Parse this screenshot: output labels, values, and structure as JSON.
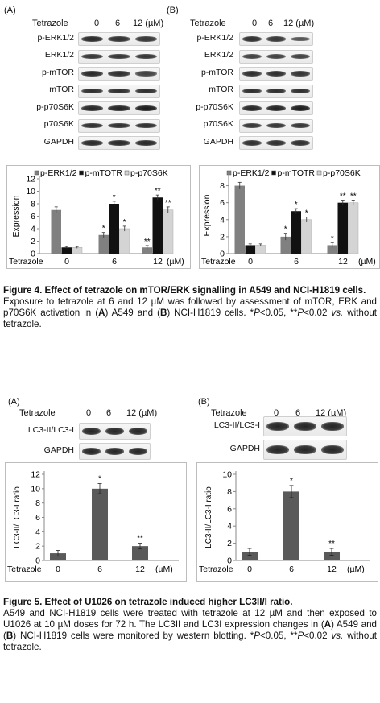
{
  "fig4": {
    "panels": [
      {
        "letter": "(A)",
        "treatment_label": "Tetrazole",
        "doses": [
          "0",
          "6",
          "12 (µM)"
        ],
        "blot_rows": [
          "p-ERK1/2",
          "ERK1/2",
          "p-mTOR",
          "mTOR",
          "p-p70S6K",
          "p70S6K",
          "GAPDH"
        ],
        "blot_intensity": [
          [
            0.9,
            0.85,
            0.8
          ],
          [
            0.8,
            0.8,
            0.8
          ],
          [
            0.9,
            0.85,
            0.7
          ],
          [
            0.85,
            0.85,
            0.85
          ],
          [
            0.9,
            0.95,
            1.0
          ],
          [
            0.85,
            0.85,
            0.85
          ],
          [
            0.9,
            0.9,
            0.9
          ]
        ],
        "chart": {
          "legend": [
            "p-ERK1/2",
            "p-mTOTR",
            "p-p70S6K"
          ],
          "ylabel": "Expression",
          "yticks": [
            "0",
            "2",
            "4",
            "6",
            "8",
            "10",
            "12"
          ],
          "ylim": [
            0,
            12
          ],
          "xlabel_prefix": "Tetrazole",
          "categories": [
            "0",
            "6",
            "12"
          ],
          "unit": "(µM)",
          "series": [
            {
              "name": "p-ERK1/2",
              "values": [
                7.0,
                3.0,
                1.0
              ],
              "errors": [
                0.5,
                0.4,
                0.3
              ],
              "marks": [
                "",
                "*",
                "**"
              ],
              "color": "#808080"
            },
            {
              "name": "p-mTOTR",
              "values": [
                1.0,
                8.0,
                9.0
              ],
              "errors": [
                0.15,
                0.4,
                0.4
              ],
              "marks": [
                "",
                "*",
                "**"
              ],
              "color": "#111111"
            },
            {
              "name": "p-p70S6K",
              "values": [
                1.0,
                4.0,
                7.0
              ],
              "errors": [
                0.15,
                0.4,
                0.5
              ],
              "marks": [
                "",
                "*",
                "**"
              ],
              "color": "#d4d4d4"
            }
          ]
        }
      },
      {
        "letter": "(B)",
        "treatment_label": "Tetrazole",
        "doses": [
          "0",
          "6",
          "12 (µM)"
        ],
        "blot_rows": [
          "p-ERK1/2",
          "ERK1/2",
          "p-mTOR",
          "mTOR",
          "p-p70S6K",
          "p70S6K",
          "GAPDH"
        ],
        "blot_intensity": [
          [
            0.85,
            0.8,
            0.55
          ],
          [
            0.7,
            0.7,
            0.7
          ],
          [
            0.85,
            0.85,
            0.8
          ],
          [
            0.85,
            0.85,
            0.85
          ],
          [
            0.9,
            0.95,
            1.0
          ],
          [
            0.8,
            0.8,
            0.8
          ],
          [
            0.85,
            0.85,
            0.85
          ]
        ],
        "chart": {
          "legend": [
            "p-ERK1/2",
            "p-mTOTR",
            "p-p70S6K"
          ],
          "ylabel": "Expression",
          "yticks": [
            "0",
            "2",
            "4",
            "6",
            "8"
          ],
          "ylim": [
            0,
            9
          ],
          "xlabel_prefix": "Tetrazole",
          "categories": [
            "0",
            "6",
            "12"
          ],
          "unit": "(µM)",
          "series": [
            {
              "name": "p-ERK1/2",
              "values": [
                8.0,
                2.0,
                1.0
              ],
              "errors": [
                0.4,
                0.4,
                0.3
              ],
              "marks": [
                "",
                "*",
                "*"
              ],
              "color": "#808080"
            },
            {
              "name": "p-mTOTR",
              "values": [
                1.0,
                5.0,
                6.0
              ],
              "errors": [
                0.15,
                0.3,
                0.3
              ],
              "marks": [
                "",
                "*",
                "**"
              ],
              "color": "#111111"
            },
            {
              "name": "p-p70S6K",
              "values": [
                1.0,
                4.0,
                6.0
              ],
              "errors": [
                0.15,
                0.3,
                0.3
              ],
              "marks": [
                "",
                "*",
                "**"
              ],
              "color": "#d4d4d4"
            }
          ]
        }
      }
    ],
    "caption": {
      "title": "Figure 4. Effect of tetrazole on mTOR/ERK signalling in A549 and NCI-H1819 cells.",
      "body_html": "Exposure to tetrazole at 6 and 12 µM was followed by assessment of mTOR, ERK and p70S6K activation in (<b>A</b>) A549 and (<b>B</b>) NCI-H1819 cells. *<i>P</i>&lt;0.05, **<i>P</i>&lt;0.02 <i>vs.</i> without tetrazole."
    }
  },
  "fig5": {
    "panels": [
      {
        "letter": "(A)",
        "treatment_label": "Tetrazole",
        "doses": [
          "0",
          "6",
          "12 (µM)"
        ],
        "blot_rows": [
          "LC3-II/LC3-I",
          "GAPDH"
        ],
        "chart": {
          "ylabel": "LC3-II/LC3-I ratio",
          "yticks": [
            "0",
            "2",
            "4",
            "6",
            "8",
            "10",
            "12"
          ],
          "ylim": [
            0,
            12
          ],
          "xlabel_prefix": "Tetrazole",
          "categories": [
            "0",
            "6",
            "12"
          ],
          "unit": "(µM)",
          "values": [
            1.0,
            10.0,
            2.0
          ],
          "errors": [
            0.4,
            0.7,
            0.4
          ],
          "marks": [
            "",
            "*",
            "**"
          ],
          "color": "#5a5a5a"
        }
      },
      {
        "letter": "(B)",
        "treatment_label": "Tetrazole",
        "doses": [
          "0",
          "6",
          "12 (µM)"
        ],
        "blot_rows": [
          "LC3-II/LC3-I",
          "GAPDH"
        ],
        "chart": {
          "ylabel": "LC3-II/LC3-I ratio",
          "yticks": [
            "0",
            "2",
            "4",
            "6",
            "8",
            "10"
          ],
          "ylim": [
            0,
            10
          ],
          "xlabel_prefix": "Tetrazole",
          "categories": [
            "0",
            "6",
            "12"
          ],
          "unit": "(µM)",
          "values": [
            1.0,
            8.0,
            1.0
          ],
          "errors": [
            0.4,
            0.7,
            0.4
          ],
          "marks": [
            "",
            "*",
            "**"
          ],
          "color": "#5a5a5a"
        }
      }
    ],
    "caption": {
      "title": "Figure 5. Effect of U1026 on tetrazole induced higher LC3II/I ratio.",
      "body_html": "A549 and NCI-H1819 cells were treated with tetrazole at 12 µM and then exposed to U1026 at 10 µM doses for 72 h. The LC3II and LC3I expression changes in (<b>A</b>) A549 and (<b>B</b>) NCI-H1819 cells were monitored by western blotting. *<i>P</i>&lt;0.05, **<i>P</i>&lt;0.02 <i>vs.</i> without tetrazole."
    }
  },
  "chart_data": [
    {
      "type": "bar",
      "title": "",
      "categories": [
        "0",
        "6",
        "12"
      ],
      "xlabel": "Tetrazole (µM)",
      "ylabel": "Expression",
      "ylim": [
        0,
        12
      ],
      "legend": "top",
      "series": [
        {
          "name": "p-ERK1/2",
          "values": [
            7.0,
            3.0,
            1.0
          ]
        },
        {
          "name": "p-mTOTR",
          "values": [
            1.0,
            8.0,
            9.0
          ]
        },
        {
          "name": "p-p70S6K",
          "values": [
            1.0,
            4.0,
            7.0
          ]
        }
      ]
    },
    {
      "type": "bar",
      "title": "",
      "categories": [
        "0",
        "6",
        "12"
      ],
      "xlabel": "Tetrazole (µM)",
      "ylabel": "Expression",
      "ylim": [
        0,
        9
      ],
      "legend": "top",
      "series": [
        {
          "name": "p-ERK1/2",
          "values": [
            8.0,
            2.0,
            1.0
          ]
        },
        {
          "name": "p-mTOTR",
          "values": [
            1.0,
            5.0,
            6.0
          ]
        },
        {
          "name": "p-p70S6K",
          "values": [
            1.0,
            4.0,
            6.0
          ]
        }
      ]
    },
    {
      "type": "bar",
      "title": "",
      "categories": [
        "0",
        "6",
        "12"
      ],
      "xlabel": "Tetrazole (µM)",
      "ylabel": "LC3-II/LC3-I ratio",
      "ylim": [
        0,
        12
      ],
      "values": [
        1.0,
        10.0,
        2.0
      ]
    },
    {
      "type": "bar",
      "title": "",
      "categories": [
        "0",
        "6",
        "12"
      ],
      "xlabel": "Tetrazole (µM)",
      "ylabel": "LC3-II/LC3-I ratio",
      "ylim": [
        0,
        10
      ],
      "values": [
        1.0,
        8.0,
        1.0
      ]
    }
  ]
}
